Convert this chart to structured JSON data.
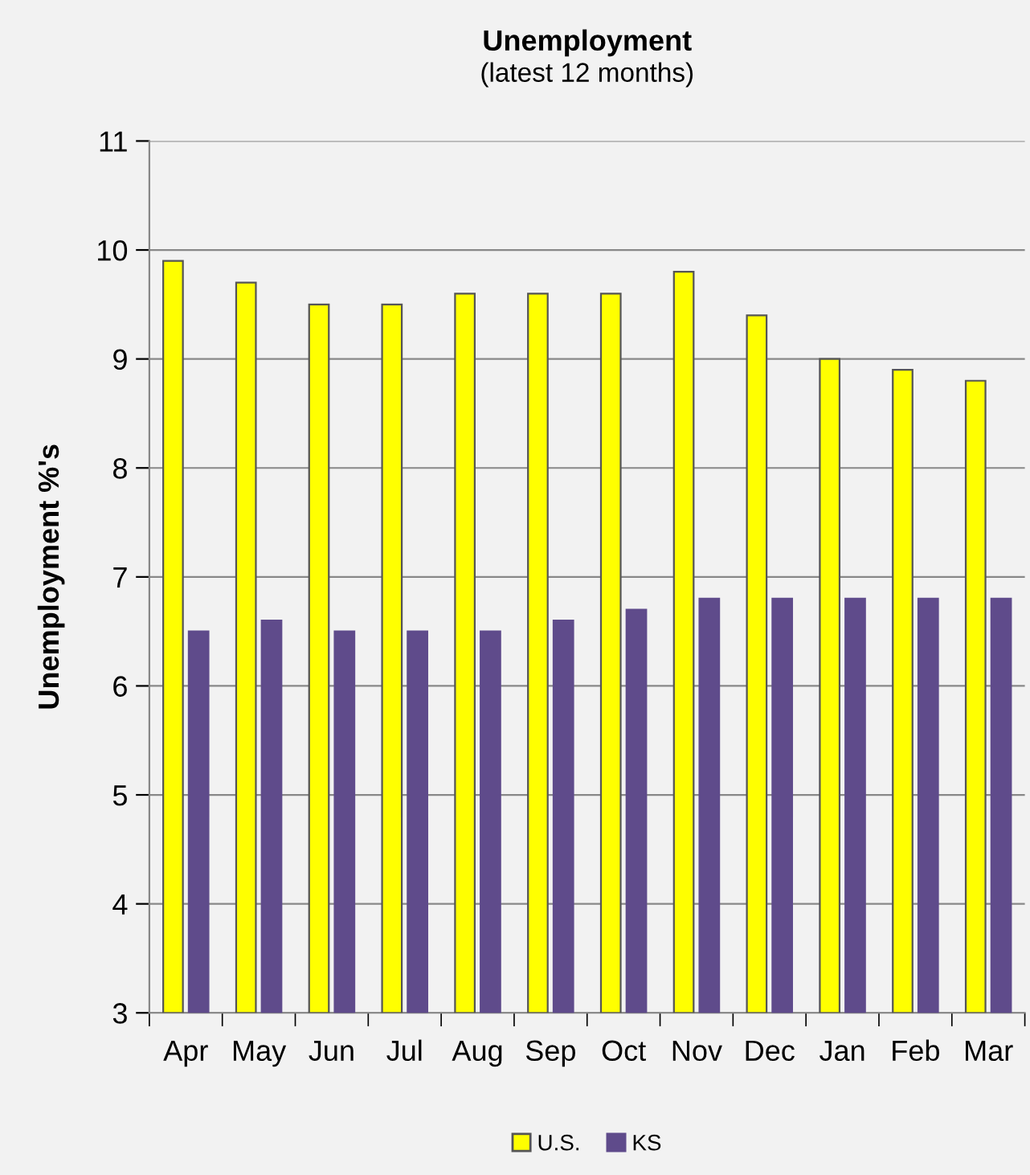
{
  "chart_data": {
    "type": "bar",
    "title": "Unemployment",
    "subtitle": "(latest 12 months)",
    "ylabel": "Unemployment %'s",
    "categories": [
      "Apr",
      "May",
      "Jun",
      "Jul",
      "Aug",
      "Sep",
      "Oct",
      "Nov",
      "Dec",
      "Jan",
      "Feb",
      "Mar"
    ],
    "series": [
      {
        "name": "U.S.",
        "color": "#ffff00",
        "values": [
          9.9,
          9.7,
          9.5,
          9.5,
          9.6,
          9.6,
          9.6,
          9.8,
          9.4,
          9.0,
          8.9,
          8.8
        ]
      },
      {
        "name": "KS",
        "color": "#5f4b8b",
        "values": [
          6.5,
          6.6,
          6.5,
          6.5,
          6.5,
          6.6,
          6.7,
          6.8,
          6.8,
          6.8,
          6.8,
          6.8
        ]
      }
    ],
    "ylim": [
      3,
      11
    ],
    "yticks": [
      3,
      4,
      5,
      6,
      7,
      8,
      9,
      10,
      11
    ],
    "grid": "y",
    "legend": "bottom"
  }
}
